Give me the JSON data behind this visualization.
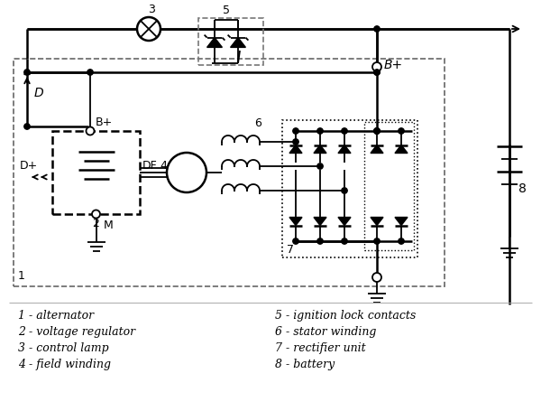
{
  "bg_color": "#ffffff",
  "legend_left": [
    "1 - alternator",
    "2 - voltage regulator",
    "3 - control lamp",
    "4 - field winding"
  ],
  "legend_right": [
    "5 - ignition lock contacts",
    "6 - stator winding",
    "7 - rectifier unit",
    "8 - battery"
  ]
}
